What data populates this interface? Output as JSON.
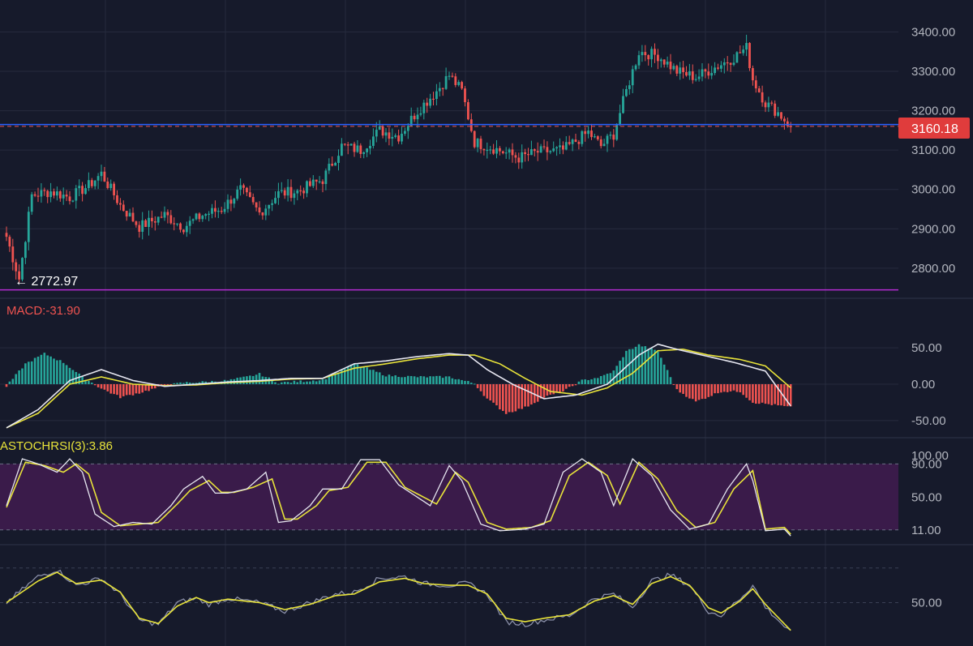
{
  "price_pane": {
    "y_ticks": [
      {
        "value": 3400,
        "label": "3400.00"
      },
      {
        "value": 3300,
        "label": "3300.00"
      },
      {
        "value": 3200,
        "label": "3200.00"
      },
      {
        "value": 3100,
        "label": "3100.00"
      },
      {
        "value": 3000,
        "label": "3000.00"
      },
      {
        "value": 2900,
        "label": "2900.00"
      },
      {
        "value": 2800,
        "label": "2800.00"
      }
    ],
    "current_price_label": "3160.18",
    "low_marker_label": "← 2772.97",
    "horizontal_line_label_color": "#2962ff"
  },
  "macd_pane": {
    "title": "MACD:-31.90",
    "y_ticks": [
      {
        "value": 50,
        "label": "50.00"
      },
      {
        "value": 0,
        "label": "0.00"
      },
      {
        "value": -50,
        "label": "-50.00"
      }
    ]
  },
  "stochrsi_pane": {
    "title": "ASTOCHRSI(3):3.86",
    "y_ticks": [
      {
        "value": 100,
        "label": "100.00"
      },
      {
        "value": 90,
        "label": "90.00"
      },
      {
        "value": 50,
        "label": "50.00"
      },
      {
        "value": 11,
        "label": "11.00"
      }
    ]
  },
  "bottom_pane": {
    "y_ticks": [
      {
        "value": 50,
        "label": "50.00"
      }
    ]
  },
  "colors": {
    "background": "#161a2b",
    "grid": "#262b3e",
    "up": "#26a69a",
    "down": "#ef5350",
    "signal": "#e8e33a",
    "line": "#e6e6f0",
    "purple_band": "#3a1b4a",
    "blue_line": "#2962ff",
    "magenta_line": "#b62cd3",
    "price_tag": "#e03c3c",
    "macd_title": "#ef5350",
    "stoch_title": "#e8e33a"
  },
  "chart_data": [
    {
      "type": "candlestick",
      "ylim": [
        2740,
        3440
      ],
      "current_price": 3160.18,
      "low_marker": 2772.97,
      "horizontal_levels": [
        3165,
        2745
      ],
      "anchors": [
        [
          0,
          2880
        ],
        [
          4,
          2772.97
        ],
        [
          8,
          2985
        ],
        [
          14,
          2995
        ],
        [
          20,
          2980
        ],
        [
          26,
          3010
        ],
        [
          30,
          3040
        ],
        [
          36,
          2960
        ],
        [
          42,
          2905
        ],
        [
          50,
          2935
        ],
        [
          56,
          2905
        ],
        [
          62,
          2935
        ],
        [
          68,
          2950
        ],
        [
          74,
          3000
        ],
        [
          80,
          2940
        ],
        [
          86,
          2990
        ],
        [
          92,
          2995
        ],
        [
          100,
          3025
        ],
        [
          106,
          3110
        ],
        [
          112,
          3100
        ],
        [
          118,
          3150
        ],
        [
          124,
          3135
        ],
        [
          130,
          3200
        ],
        [
          136,
          3250
        ],
        [
          140,
          3290
        ],
        [
          144,
          3250
        ],
        [
          148,
          3120
        ],
        [
          154,
          3105
        ],
        [
          162,
          3080
        ],
        [
          168,
          3095
        ],
        [
          176,
          3100
        ],
        [
          184,
          3145
        ],
        [
          188,
          3110
        ],
        [
          192,
          3140
        ],
        [
          196,
          3250
        ],
        [
          200,
          3350
        ],
        [
          206,
          3340
        ],
        [
          212,
          3300
        ],
        [
          218,
          3285
        ],
        [
          224,
          3310
        ],
        [
          230,
          3335
        ],
        [
          234,
          3360
        ],
        [
          236,
          3280
        ],
        [
          240,
          3220
        ],
        [
          244,
          3195
        ],
        [
          248,
          3160.18
        ]
      ]
    },
    {
      "type": "macd",
      "ylim": [
        -68,
        88
      ],
      "current_value": -31.9,
      "histogram_anchors": [
        [
          0,
          -3
        ],
        [
          6,
          28
        ],
        [
          12,
          42
        ],
        [
          18,
          30
        ],
        [
          24,
          10
        ],
        [
          30,
          -6
        ],
        [
          36,
          -18
        ],
        [
          42,
          -12
        ],
        [
          50,
          -2
        ],
        [
          56,
          2
        ],
        [
          62,
          3
        ],
        [
          70,
          5
        ],
        [
          76,
          10
        ],
        [
          80,
          14
        ],
        [
          86,
          2
        ],
        [
          90,
          3
        ],
        [
          100,
          6
        ],
        [
          110,
          28
        ],
        [
          120,
          12
        ],
        [
          130,
          10
        ],
        [
          140,
          10
        ],
        [
          148,
          1
        ],
        [
          152,
          -20
        ],
        [
          158,
          -40
        ],
        [
          164,
          -32
        ],
        [
          170,
          -18
        ],
        [
          176,
          -10
        ],
        [
          182,
          5
        ],
        [
          188,
          10
        ],
        [
          192,
          18
        ],
        [
          196,
          45
        ],
        [
          200,
          54
        ],
        [
          206,
          45
        ],
        [
          212,
          -8
        ],
        [
          218,
          -24
        ],
        [
          226,
          -10
        ],
        [
          232,
          -10
        ],
        [
          236,
          -25
        ],
        [
          242,
          -28
        ],
        [
          248,
          -32
        ]
      ],
      "macd_anchors": [
        [
          0,
          -60
        ],
        [
          10,
          -35
        ],
        [
          20,
          5
        ],
        [
          30,
          20
        ],
        [
          40,
          5
        ],
        [
          50,
          -3
        ],
        [
          60,
          0
        ],
        [
          70,
          3
        ],
        [
          80,
          5
        ],
        [
          90,
          8
        ],
        [
          100,
          8
        ],
        [
          110,
          28
        ],
        [
          120,
          32
        ],
        [
          130,
          38
        ],
        [
          140,
          42
        ],
        [
          146,
          40
        ],
        [
          152,
          20
        ],
        [
          160,
          0
        ],
        [
          170,
          -20
        ],
        [
          180,
          -15
        ],
        [
          190,
          0
        ],
        [
          200,
          40
        ],
        [
          206,
          55
        ],
        [
          212,
          48
        ],
        [
          220,
          40
        ],
        [
          230,
          30
        ],
        [
          240,
          18
        ],
        [
          248,
          -30
        ]
      ],
      "signal_anchors": [
        [
          0,
          -60
        ],
        [
          10,
          -40
        ],
        [
          20,
          0
        ],
        [
          30,
          10
        ],
        [
          40,
          0
        ],
        [
          50,
          -2
        ],
        [
          60,
          -1
        ],
        [
          70,
          2
        ],
        [
          80,
          4
        ],
        [
          90,
          7
        ],
        [
          100,
          8
        ],
        [
          110,
          22
        ],
        [
          120,
          28
        ],
        [
          130,
          35
        ],
        [
          140,
          40
        ],
        [
          148,
          40
        ],
        [
          156,
          28
        ],
        [
          164,
          8
        ],
        [
          172,
          -10
        ],
        [
          182,
          -15
        ],
        [
          190,
          -5
        ],
        [
          198,
          15
        ],
        [
          206,
          46
        ],
        [
          214,
          48
        ],
        [
          222,
          40
        ],
        [
          232,
          34
        ],
        [
          240,
          25
        ],
        [
          248,
          -5
        ]
      ]
    },
    {
      "type": "stochrsi",
      "ylim": [
        5,
        100
      ],
      "band": [
        11,
        90
      ],
      "current_value": 3.86,
      "k_anchors": [
        [
          0,
          40
        ],
        [
          5,
          96
        ],
        [
          10,
          90
        ],
        [
          16,
          80
        ],
        [
          20,
          96
        ],
        [
          24,
          80
        ],
        [
          28,
          30
        ],
        [
          34,
          15
        ],
        [
          40,
          20
        ],
        [
          46,
          18
        ],
        [
          52,
          40
        ],
        [
          56,
          60
        ],
        [
          62,
          75
        ],
        [
          66,
          55
        ],
        [
          70,
          55
        ],
        [
          76,
          60
        ],
        [
          82,
          80
        ],
        [
          86,
          20
        ],
        [
          90,
          22
        ],
        [
          96,
          40
        ],
        [
          100,
          60
        ],
        [
          106,
          60
        ],
        [
          112,
          95
        ],
        [
          118,
          95
        ],
        [
          124,
          65
        ],
        [
          128,
          55
        ],
        [
          134,
          40
        ],
        [
          140,
          88
        ],
        [
          144,
          70
        ],
        [
          150,
          18
        ],
        [
          156,
          10
        ],
        [
          164,
          12
        ],
        [
          170,
          18
        ],
        [
          176,
          80
        ],
        [
          182,
          96
        ],
        [
          188,
          80
        ],
        [
          192,
          40
        ],
        [
          198,
          96
        ],
        [
          204,
          76
        ],
        [
          210,
          35
        ],
        [
          216,
          12
        ],
        [
          222,
          18
        ],
        [
          228,
          60
        ],
        [
          234,
          90
        ],
        [
          236,
          70
        ],
        [
          240,
          10
        ],
        [
          246,
          12
        ],
        [
          248,
          3.86
        ]
      ],
      "d_anchors": [
        [
          0,
          38
        ],
        [
          6,
          92
        ],
        [
          12,
          88
        ],
        [
          18,
          80
        ],
        [
          22,
          90
        ],
        [
          26,
          78
        ],
        [
          30,
          32
        ],
        [
          36,
          16
        ],
        [
          42,
          18
        ],
        [
          48,
          20
        ],
        [
          54,
          42
        ],
        [
          58,
          58
        ],
        [
          64,
          70
        ],
        [
          68,
          56
        ],
        [
          72,
          56
        ],
        [
          78,
          62
        ],
        [
          84,
          72
        ],
        [
          88,
          24
        ],
        [
          92,
          24
        ],
        [
          98,
          40
        ],
        [
          102,
          58
        ],
        [
          108,
          62
        ],
        [
          114,
          92
        ],
        [
          120,
          92
        ],
        [
          126,
          62
        ],
        [
          130,
          54
        ],
        [
          136,
          42
        ],
        [
          142,
          80
        ],
        [
          146,
          68
        ],
        [
          152,
          20
        ],
        [
          158,
          12
        ],
        [
          166,
          14
        ],
        [
          172,
          22
        ],
        [
          178,
          76
        ],
        [
          184,
          92
        ],
        [
          190,
          76
        ],
        [
          194,
          42
        ],
        [
          200,
          92
        ],
        [
          206,
          72
        ],
        [
          212,
          34
        ],
        [
          218,
          14
        ],
        [
          224,
          20
        ],
        [
          230,
          60
        ],
        [
          236,
          82
        ],
        [
          240,
          12
        ],
        [
          246,
          14
        ],
        [
          248,
          6
        ]
      ]
    },
    {
      "type": "line",
      "ylim": [
        0,
        100
      ],
      "series_a_anchors": [
        [
          0,
          50
        ],
        [
          10,
          80
        ],
        [
          16,
          88
        ],
        [
          22,
          70
        ],
        [
          30,
          78
        ],
        [
          36,
          60
        ],
        [
          42,
          30
        ],
        [
          48,
          25
        ],
        [
          54,
          50
        ],
        [
          60,
          55
        ],
        [
          64,
          48
        ],
        [
          70,
          55
        ],
        [
          80,
          50
        ],
        [
          88,
          40
        ],
        [
          96,
          50
        ],
        [
          104,
          60
        ],
        [
          110,
          62
        ],
        [
          118,
          78
        ],
        [
          126,
          80
        ],
        [
          132,
          72
        ],
        [
          140,
          70
        ],
        [
          146,
          72
        ],
        [
          152,
          60
        ],
        [
          158,
          28
        ],
        [
          164,
          25
        ],
        [
          170,
          30
        ],
        [
          178,
          35
        ],
        [
          186,
          55
        ],
        [
          192,
          60
        ],
        [
          198,
          45
        ],
        [
          204,
          75
        ],
        [
          210,
          82
        ],
        [
          216,
          70
        ],
        [
          222,
          40
        ],
        [
          226,
          35
        ],
        [
          232,
          55
        ],
        [
          236,
          70
        ],
        [
          240,
          45
        ],
        [
          248,
          15
        ]
      ],
      "series_b_anchors": [
        [
          0,
          50
        ],
        [
          10,
          75
        ],
        [
          16,
          85
        ],
        [
          22,
          72
        ],
        [
          30,
          76
        ],
        [
          36,
          62
        ],
        [
          42,
          32
        ],
        [
          48,
          26
        ],
        [
          54,
          46
        ],
        [
          60,
          56
        ],
        [
          64,
          50
        ],
        [
          70,
          54
        ],
        [
          80,
          50
        ],
        [
          88,
          42
        ],
        [
          96,
          48
        ],
        [
          104,
          58
        ],
        [
          110,
          60
        ],
        [
          118,
          74
        ],
        [
          126,
          78
        ],
        [
          132,
          72
        ],
        [
          140,
          70
        ],
        [
          146,
          70
        ],
        [
          152,
          60
        ],
        [
          158,
          32
        ],
        [
          164,
          28
        ],
        [
          170,
          32
        ],
        [
          178,
          36
        ],
        [
          186,
          52
        ],
        [
          192,
          58
        ],
        [
          198,
          48
        ],
        [
          204,
          72
        ],
        [
          210,
          80
        ],
        [
          216,
          70
        ],
        [
          222,
          44
        ],
        [
          226,
          38
        ],
        [
          232,
          52
        ],
        [
          236,
          66
        ],
        [
          240,
          48
        ],
        [
          248,
          18
        ]
      ]
    }
  ]
}
